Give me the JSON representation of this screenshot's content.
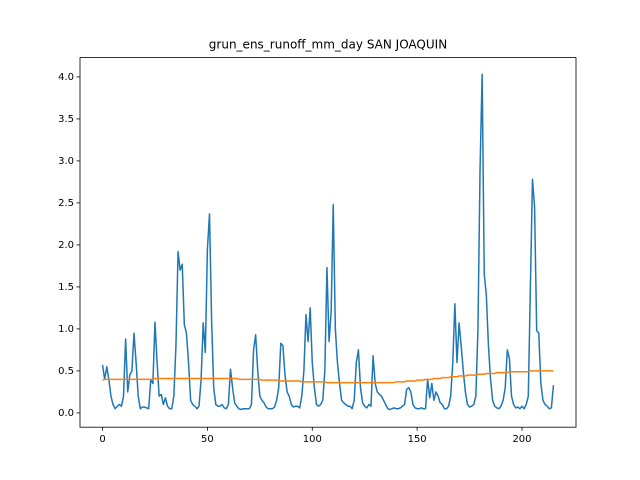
{
  "chart_data": {
    "type": "line",
    "title": "grun_ens_runoff_mm_day SAN JOAQUIN",
    "x": [
      0,
      1,
      2,
      3,
      4,
      5,
      6,
      7,
      8,
      9,
      10,
      11,
      12,
      13,
      14,
      15,
      16,
      17,
      18,
      19,
      20,
      21,
      22,
      23,
      24,
      25,
      26,
      27,
      28,
      29,
      30,
      31,
      32,
      33,
      34,
      35,
      36,
      37,
      38,
      39,
      40,
      41,
      42,
      43,
      44,
      45,
      46,
      47,
      48,
      49,
      50,
      51,
      52,
      53,
      54,
      55,
      56,
      57,
      58,
      59,
      60,
      61,
      62,
      63,
      64,
      65,
      66,
      67,
      68,
      69,
      70,
      71,
      72,
      73,
      74,
      75,
      76,
      77,
      78,
      79,
      80,
      81,
      82,
      83,
      84,
      85,
      86,
      87,
      88,
      89,
      90,
      91,
      92,
      93,
      94,
      95,
      96,
      97,
      98,
      99,
      100,
      101,
      102,
      103,
      104,
      105,
      106,
      107,
      108,
      109,
      110,
      111,
      112,
      113,
      114,
      115,
      116,
      117,
      118,
      119,
      120,
      121,
      122,
      123,
      124,
      125,
      126,
      127,
      128,
      129,
      130,
      131,
      132,
      133,
      134,
      135,
      136,
      137,
      138,
      139,
      140,
      141,
      142,
      143,
      144,
      145,
      146,
      147,
      148,
      149,
      150,
      151,
      152,
      153,
      154,
      155,
      156,
      157,
      158,
      159,
      160,
      161,
      162,
      163,
      164,
      165,
      166,
      167,
      168,
      169,
      170,
      171,
      172,
      173,
      174,
      175,
      176,
      177,
      178,
      179,
      180,
      181,
      182,
      183,
      184,
      185,
      186,
      187,
      188,
      189,
      190,
      191,
      192,
      193,
      194,
      195,
      196,
      197,
      198,
      199,
      200,
      201,
      202,
      203,
      204,
      205,
      206,
      207,
      208,
      209,
      210,
      211,
      212,
      213,
      214,
      215
    ],
    "series": [
      {
        "color": "#1f77b4",
        "values": [
          0.57,
          0.4,
          0.55,
          0.4,
          0.2,
          0.1,
          0.05,
          0.08,
          0.1,
          0.08,
          0.2,
          0.88,
          0.25,
          0.45,
          0.5,
          0.95,
          0.6,
          0.2,
          0.05,
          0.07,
          0.07,
          0.06,
          0.05,
          0.4,
          0.35,
          1.08,
          0.6,
          0.2,
          0.22,
          0.1,
          0.18,
          0.08,
          0.05,
          0.05,
          0.2,
          0.8,
          1.92,
          1.7,
          1.77,
          1.05,
          0.95,
          0.6,
          0.15,
          0.1,
          0.08,
          0.05,
          0.08,
          0.4,
          1.07,
          0.72,
          1.95,
          2.37,
          1.1,
          0.3,
          0.1,
          0.08,
          0.08,
          0.1,
          0.06,
          0.05,
          0.1,
          0.52,
          0.3,
          0.12,
          0.08,
          0.05,
          0.04,
          0.05,
          0.05,
          0.05,
          0.05,
          0.1,
          0.75,
          0.93,
          0.5,
          0.2,
          0.15,
          0.12,
          0.07,
          0.05,
          0.05,
          0.05,
          0.07,
          0.15,
          0.3,
          0.83,
          0.8,
          0.45,
          0.25,
          0.2,
          0.1,
          0.07,
          0.08,
          0.08,
          0.06,
          0.2,
          0.5,
          1.17,
          0.85,
          1.25,
          0.6,
          0.3,
          0.1,
          0.08,
          0.1,
          0.15,
          0.5,
          1.73,
          0.85,
          1.2,
          2.48,
          1.0,
          0.6,
          0.35,
          0.15,
          0.12,
          0.1,
          0.08,
          0.08,
          0.05,
          0.15,
          0.6,
          0.75,
          0.3,
          0.12,
          0.08,
          0.06,
          0.1,
          0.08,
          0.68,
          0.35,
          0.25,
          0.22,
          0.2,
          0.15,
          0.1,
          0.05,
          0.04,
          0.05,
          0.06,
          0.05,
          0.05,
          0.06,
          0.08,
          0.1,
          0.28,
          0.3,
          0.25,
          0.1,
          0.06,
          0.05,
          0.05,
          0.06,
          0.05,
          0.05,
          0.4,
          0.18,
          0.35,
          0.15,
          0.25,
          0.2,
          0.12,
          0.1,
          0.05,
          0.05,
          0.08,
          0.2,
          0.6,
          1.3,
          0.6,
          1.07,
          0.8,
          0.5,
          0.25,
          0.1,
          0.07,
          0.08,
          0.1,
          0.2,
          1.0,
          2.9,
          4.03,
          1.65,
          1.4,
          0.8,
          0.4,
          0.15,
          0.08,
          0.06,
          0.05,
          0.08,
          0.15,
          0.3,
          0.75,
          0.65,
          0.2,
          0.1,
          0.06,
          0.07,
          0.05,
          0.08,
          0.05,
          0.1,
          0.2,
          1.5,
          2.78,
          2.45,
          0.98,
          0.95,
          0.35,
          0.15,
          0.1,
          0.08,
          0.05,
          0.06,
          0.33
        ]
      },
      {
        "color": "#ff7f0e",
        "values": [
          0.39,
          0.4,
          0.4,
          0.4,
          0.4,
          0.4,
          0.4,
          0.4,
          0.4,
          0.4,
          0.4,
          0.4,
          0.4,
          0.4,
          0.4,
          0.4,
          0.4,
          0.4,
          0.4,
          0.4,
          0.4,
          0.4,
          0.4,
          0.4,
          0.4,
          0.41,
          0.41,
          0.41,
          0.41,
          0.41,
          0.41,
          0.41,
          0.41,
          0.41,
          0.41,
          0.41,
          0.41,
          0.41,
          0.41,
          0.41,
          0.41,
          0.41,
          0.41,
          0.41,
          0.41,
          0.41,
          0.41,
          0.41,
          0.41,
          0.41,
          0.41,
          0.41,
          0.41,
          0.41,
          0.41,
          0.41,
          0.41,
          0.41,
          0.41,
          0.41,
          0.41,
          0.41,
          0.41,
          0.41,
          0.41,
          0.4,
          0.4,
          0.4,
          0.4,
          0.4,
          0.4,
          0.4,
          0.4,
          0.4,
          0.4,
          0.4,
          0.39,
          0.39,
          0.39,
          0.39,
          0.39,
          0.39,
          0.39,
          0.39,
          0.39,
          0.38,
          0.38,
          0.38,
          0.38,
          0.38,
          0.38,
          0.38,
          0.38,
          0.38,
          0.38,
          0.37,
          0.37,
          0.37,
          0.37,
          0.37,
          0.37,
          0.37,
          0.37,
          0.37,
          0.37,
          0.37,
          0.37,
          0.36,
          0.36,
          0.36,
          0.36,
          0.36,
          0.36,
          0.36,
          0.36,
          0.36,
          0.36,
          0.36,
          0.36,
          0.36,
          0.36,
          0.36,
          0.36,
          0.36,
          0.36,
          0.36,
          0.36,
          0.36,
          0.36,
          0.36,
          0.36,
          0.36,
          0.36,
          0.36,
          0.36,
          0.36,
          0.36,
          0.36,
          0.36,
          0.36,
          0.37,
          0.37,
          0.37,
          0.37,
          0.37,
          0.38,
          0.38,
          0.38,
          0.38,
          0.38,
          0.39,
          0.39,
          0.39,
          0.39,
          0.4,
          0.4,
          0.4,
          0.4,
          0.41,
          0.41,
          0.41,
          0.41,
          0.42,
          0.42,
          0.42,
          0.42,
          0.43,
          0.43,
          0.43,
          0.43,
          0.44,
          0.44,
          0.44,
          0.44,
          0.45,
          0.45,
          0.45,
          0.45,
          0.45,
          0.46,
          0.46,
          0.46,
          0.46,
          0.47,
          0.47,
          0.47,
          0.47,
          0.47,
          0.48,
          0.48,
          0.48,
          0.48,
          0.48,
          0.48,
          0.49,
          0.49,
          0.49,
          0.49,
          0.49,
          0.49,
          0.49,
          0.49,
          0.49,
          0.49,
          0.5,
          0.5,
          0.5,
          0.5,
          0.5,
          0.5,
          0.5,
          0.5,
          0.5,
          0.5,
          0.5,
          0.5
        ]
      }
    ],
    "xlim": [
      -10.75,
      225.75
    ],
    "xticks": [
      0,
      50,
      100,
      150,
      200
    ],
    "ylim": [
      -0.17,
      4.23
    ],
    "yticks": [
      {
        "value": 0,
        "label": "0.0"
      },
      0.5,
      {
        "value": 1,
        "label": "1.0"
      },
      1.5,
      {
        "value": 2,
        "label": "2.0"
      },
      2.5,
      {
        "value": 3,
        "label": "3.0"
      },
      3.5,
      {
        "value": 4,
        "label": "4.0"
      }
    ]
  }
}
